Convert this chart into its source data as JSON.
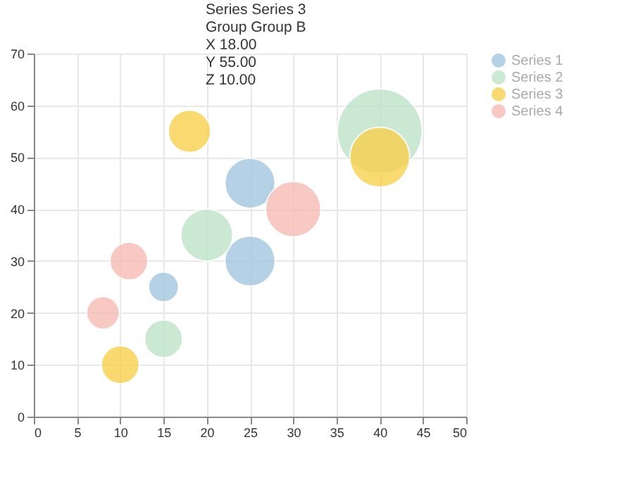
{
  "chart_data": {
    "type": "bubble",
    "xlim": [
      0,
      50
    ],
    "xticks": [
      0,
      5,
      10,
      15,
      20,
      25,
      30,
      35,
      40,
      45,
      50
    ],
    "ylim": [
      0,
      70
    ],
    "yticks": [
      0,
      10,
      20,
      30,
      40,
      50,
      60,
      70
    ],
    "grid": true,
    "legend": "right",
    "annotations": [
      "Series Series 3",
      "Group Group B",
      "X 18.00",
      "Y 55.00",
      "Z 10.00"
    ],
    "series": [
      {
        "name": "Series 1",
        "color": "#a3c6df",
        "x": [
          15,
          25,
          25
        ],
        "values": [
          25,
          45,
          30
        ],
        "sizes": [
          0.125,
          0.35,
          0.35
        ]
      },
      {
        "name": "Series 2",
        "color": "#bfe3c9",
        "x": [
          15,
          20,
          40
        ],
        "values": [
          15,
          35,
          55
        ],
        "sizes": [
          0.2,
          0.375,
          1
        ]
      },
      {
        "name": "Series 3",
        "color": "#f8d14e",
        "x": [
          10,
          18,
          40
        ],
        "values": [
          10,
          55,
          50
        ],
        "sizes": [
          0.2,
          0.25,
          0.5
        ]
      },
      {
        "name": "Series 4",
        "color": "#f6bcb3",
        "x": [
          8,
          11,
          30
        ],
        "values": [
          20,
          30,
          40
        ],
        "sizes": [
          0.15,
          0.2,
          0.425
        ]
      }
    ]
  }
}
